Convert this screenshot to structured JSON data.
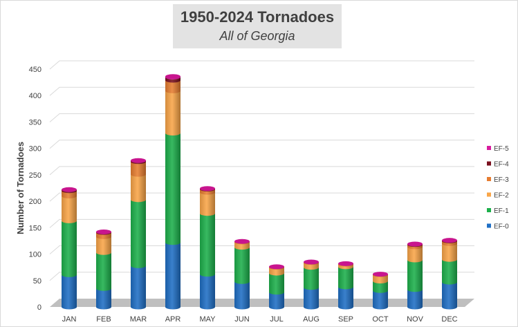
{
  "chart_data": {
    "type": "bar",
    "stacked": true,
    "title": "1950-2024 Tornadoes",
    "subtitle": "All of Georgia",
    "xlabel": "",
    "ylabel": "Number of Tornadoes",
    "ylim": [
      0,
      450
    ],
    "yticks": [
      0,
      50,
      100,
      150,
      200,
      250,
      300,
      350,
      400,
      450
    ],
    "grid": true,
    "legend_position": "right",
    "categories": [
      "JAN",
      "FEB",
      "MAR",
      "APR",
      "MAY",
      "JUN",
      "JUL",
      "AUG",
      "SEP",
      "OCT",
      "NOV",
      "DEC"
    ],
    "series": [
      {
        "name": "EF-0",
        "color": "#1f6fc5",
        "values": [
          61,
          35,
          78,
          122,
          62,
          48,
          28,
          37,
          38,
          31,
          33,
          47
        ]
      },
      {
        "name": "EF-1",
        "color": "#1db04b",
        "values": [
          102,
          68,
          125,
          207,
          115,
          65,
          36,
          38,
          38,
          18,
          56,
          43
        ]
      },
      {
        "name": "EF-2",
        "color": "#f9a548",
        "values": [
          47,
          30,
          48,
          80,
          40,
          10,
          11,
          9,
          5,
          12,
          25,
          30
        ]
      },
      {
        "name": "EF-3",
        "color": "#e67d30",
        "values": [
          10,
          8,
          24,
          20,
          6,
          1,
          1,
          1,
          1,
          1,
          4,
          5
        ]
      },
      {
        "name": "EF-4",
        "color": "#7a0f1e",
        "values": [
          2,
          1,
          2,
          6,
          1,
          0,
          0,
          0,
          0,
          0,
          1,
          1
        ]
      },
      {
        "name": "EF-5",
        "color": "#d81b9e",
        "values": [
          0,
          0,
          0,
          1,
          0,
          0,
          0,
          0,
          0,
          0,
          0,
          0
        ]
      }
    ]
  }
}
